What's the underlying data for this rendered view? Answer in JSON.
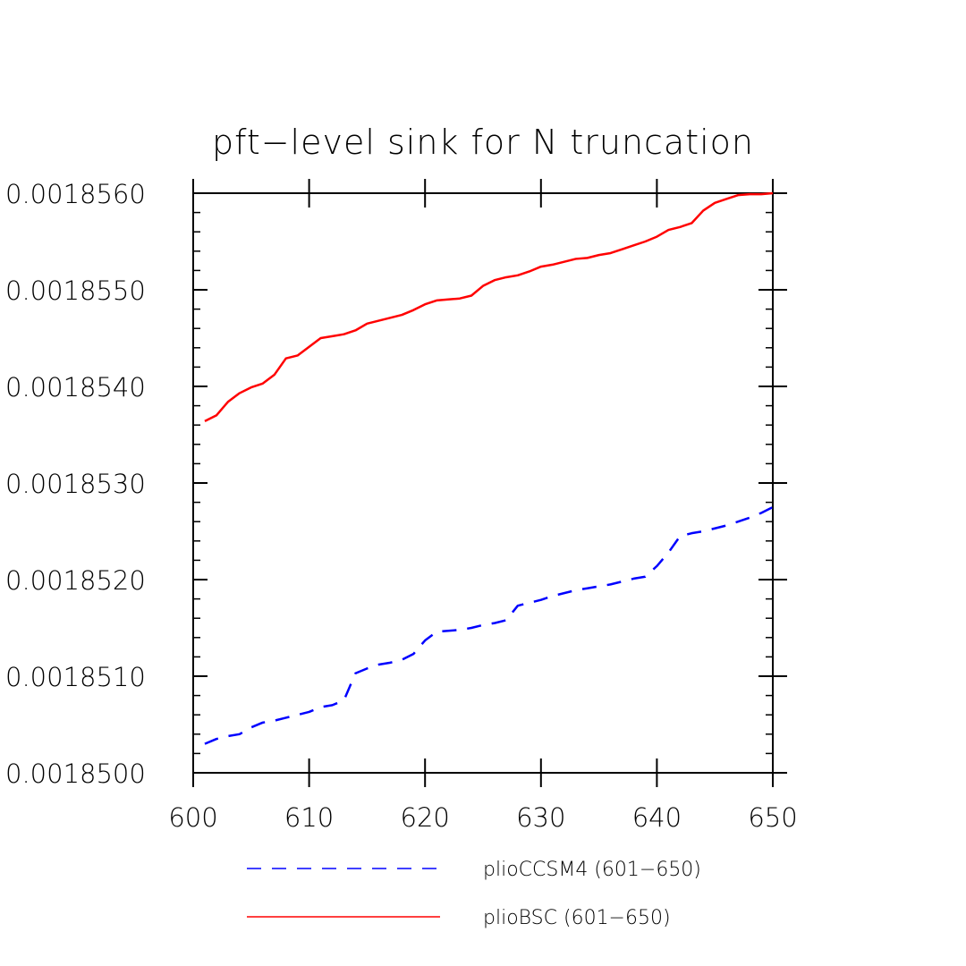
{
  "chart_data": {
    "type": "line",
    "title": "pft−level sink for N truncation",
    "xlabel": "",
    "ylabel": "",
    "xlim": [
      600,
      650
    ],
    "ylim": [
      0.00185,
      0.001856
    ],
    "xticks": [
      600,
      610,
      620,
      630,
      640,
      650
    ],
    "xtick_labels": [
      "600",
      "610",
      "620",
      "630",
      "640",
      "650"
    ],
    "yticks": [
      0.00185,
      0.001851,
      0.001852,
      0.001853,
      0.001854,
      0.001855,
      0.001856
    ],
    "ytick_labels": [
      "0.0018500",
      "0.0018510",
      "0.0018520",
      "0.0018530",
      "0.0018540",
      "0.0018550",
      "0.0018560"
    ],
    "grid": false,
    "legend_position": "bottom",
    "x": [
      601,
      602,
      603,
      604,
      605,
      606,
      607,
      608,
      609,
      610,
      611,
      612,
      613,
      614,
      615,
      616,
      617,
      618,
      619,
      620,
      621,
      622,
      623,
      624,
      625,
      626,
      627,
      628,
      629,
      630,
      631,
      632,
      633,
      634,
      635,
      636,
      637,
      638,
      639,
      640,
      641,
      642,
      643,
      644,
      645,
      646,
      647,
      648,
      649,
      650
    ],
    "series": [
      {
        "name": "plioCCSM4 (601−650)",
        "color": "#0000ff",
        "style": "dashed",
        "values": [
          0.0018503,
          0.00185035,
          0.00185038,
          0.0018504,
          0.00185047,
          0.00185052,
          0.00185054,
          0.00185057,
          0.0018506,
          0.00185063,
          0.00185068,
          0.0018507,
          0.00185075,
          0.00185103,
          0.00185108,
          0.00185112,
          0.00185114,
          0.00185117,
          0.00185123,
          0.00185137,
          0.00185146,
          0.00185147,
          0.00185148,
          0.0018515,
          0.00185153,
          0.00185155,
          0.00185158,
          0.00185173,
          0.00185176,
          0.00185179,
          0.00185183,
          0.00185186,
          0.00185189,
          0.00185191,
          0.00185193,
          0.00185195,
          0.00185198,
          0.00185201,
          0.00185203,
          0.00185214,
          0.00185228,
          0.00185245,
          0.00185248,
          0.0018525,
          0.00185253,
          0.00185256,
          0.0018526,
          0.00185264,
          0.00185269,
          0.00185275
        ]
      },
      {
        "name": "plioBSC (601−650)",
        "color": "#ff0000",
        "style": "solid",
        "values": [
          0.00185364,
          0.0018537,
          0.00185384,
          0.00185393,
          0.00185399,
          0.00185403,
          0.00185412,
          0.00185429,
          0.00185432,
          0.00185441,
          0.0018545,
          0.00185452,
          0.00185454,
          0.00185458,
          0.00185465,
          0.00185468,
          0.00185471,
          0.00185474,
          0.00185479,
          0.00185485,
          0.00185489,
          0.0018549,
          0.00185491,
          0.00185494,
          0.00185504,
          0.0018551,
          0.00185513,
          0.00185515,
          0.00185519,
          0.00185524,
          0.00185526,
          0.00185529,
          0.00185532,
          0.00185533,
          0.00185536,
          0.00185538,
          0.00185542,
          0.00185546,
          0.0018555,
          0.00185555,
          0.00185562,
          0.00185565,
          0.00185569,
          0.00185582,
          0.0018559,
          0.00185594,
          0.00185598,
          0.00185599,
          0.00185599,
          0.001856
        ]
      }
    ]
  }
}
